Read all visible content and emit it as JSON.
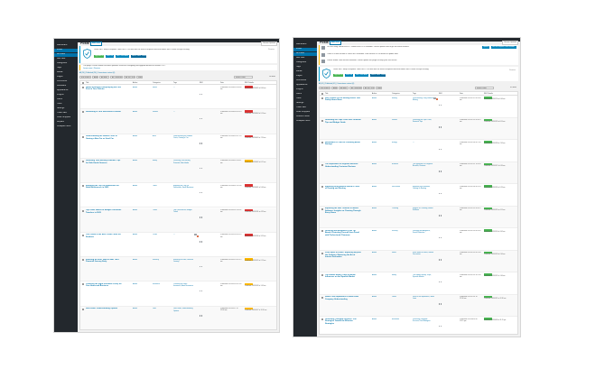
{
  "sidebar": {
    "items_left": [
      "Dashboard",
      "Posts",
      "All Posts",
      "Add New",
      "Categories",
      "Tags",
      "Media",
      "Pages",
      "Comments",
      "Feedback",
      "Appearance",
      "Plugins",
      "Users",
      "Tools",
      "Settings",
      "Yoast SEO",
      "Code Snippets",
      "Jetpack",
      "Collapse menu"
    ],
    "items_right": [
      "Dashboard",
      "Posts",
      "All Posts",
      "Add New",
      "Categories",
      "Tags",
      "Media",
      "Pages",
      "Comments",
      "Appearance",
      "Plugins",
      "Users",
      "Tools",
      "Settings",
      "Yoast SEO",
      "Code Snippets",
      "Custom Fields",
      "Collapse menu"
    ]
  },
  "left": {
    "title": "Posts",
    "add_new": "Add New",
    "screen_options": "Screen Options",
    "notice_text": "Yoast SEO: Help us improve Yoast SEO. Our data tells us what to improve and what works well. Please accept tracking.",
    "notice_buttons": [
      "Upgrade to Pro",
      "Rate 5★",
      "Get a Free Audit",
      "Watch Video Tutorial"
    ],
    "dismiss": "Dismiss",
    "info_line": "The plugin Classic Editor has been updated. Read the changelog and upgrade details for version 1.6.2.",
    "info_link": "Learn more | Dismiss",
    "subsubsub": "All (26) | Published (26) | Cornerstone content (0)",
    "bulk": "Bulk actions",
    "apply": "Apply",
    "dates": "All dates",
    "cats": "All Categories",
    "seo": "All SEO Scores",
    "readability": "All Readability",
    "filter": "Filter",
    "search": "Search Posts",
    "items": "26 items",
    "columns": [
      "Title",
      "Author",
      "Categories",
      "Tags",
      "SEO",
      "Date",
      "SEO Details"
    ],
    "rows": [
      {
        "title": "Health Insurance Demystifying the Fine Print in Your Policies",
        "author": "Admin",
        "category": "Health",
        "tags": "—",
        "comments": "",
        "badge": "No Focus",
        "badge_color": "#dc3232",
        "date": "Published 2023/06/05 at 8:00 am"
      },
      {
        "title": "Something in Your Retirement Portfolio",
        "author": "Admin",
        "category": "Finance",
        "tags": "—",
        "comments": "",
        "badge": "No Focus",
        "badge_color": "#dc3232",
        "date": "Published 2023/06/04 at 9:14 am"
      },
      {
        "title": "Understanding the Hidden Costs of Owning a New Car vs Used Car",
        "author": "Admin",
        "category": "Auto",
        "tags": "Understanding the Hidden Costs, Owning a Car",
        "comments": "",
        "badge": "No Focus",
        "badge_color": "#dc3232",
        "date": "Published 2023/06/03 at 7:20 am"
      },
      {
        "title": "Unlocking Your Earning Potential: Tips for Side Hustle Success",
        "author": "Admin",
        "category": "Money",
        "tags": "Unlocking Your Earning Potential, Side Hustle",
        "comments": "",
        "badge": "No Focus",
        "badge_color": "#ffb900",
        "date": "Published 2023/06/02 at 6:11 am"
      },
      {
        "title": "Exploring the Top Tax Deductions for Small Businesses in 2023",
        "author": "Admin",
        "category": "Taxes",
        "tags": "Exploring the Top Tax Deductions, Small Business",
        "comments": "",
        "badge": "No Focus",
        "badge_color": "#dc3232",
        "date": "Published 2023/06/01 at 5:40 am"
      },
      {
        "title": "Top Travel Hacks for Budget-Conscious Travelers in 2023",
        "author": "Admin",
        "category": "Travel",
        "tags": "Top Travel Hacks, Budget Travel",
        "comments": "",
        "badge": "No Focus",
        "badge_color": "#dc3232",
        "date": "Published 2023/05/31 at 4:32 am"
      },
      {
        "title": "Your Guide to the Best Credit Cards for Students",
        "author": "Admin",
        "category": "Cards",
        "tags": "—",
        "comments": "1",
        "badge": "No Focus",
        "badge_color": "#dc3232",
        "date": "Published 2023/05/30 at 3:25 am"
      },
      {
        "title": "Investing for Kids: How to Start Their Financial Journey Early",
        "author": "Admin",
        "category": "Investing",
        "tags": "Investing for Kids, Financial Journey",
        "comments": "",
        "badge": "No Focus",
        "badge_color": "#ffb900",
        "date": "Published 2023/05/29 at 2:15 am"
      },
      {
        "title": "Choosing the Right Insurance Policy for Your Home and Business",
        "author": "Admin",
        "category": "Insurance",
        "tags": "Choosing the Right Insurance, Home Insurance",
        "comments": "",
        "badge": "No Focus",
        "badge_color": "#ffb900",
        "date": "Published 2023/05/28 at 1:05 am"
      },
      {
        "title": "Debt Relief: Understanding Options",
        "author": "Admin",
        "category": "Debt",
        "tags": "Debt Relief, Understanding Options",
        "comments": "",
        "badge": "No Focus",
        "badge_color": "#ffb900",
        "date": "Published 2023/05/27 at 12:00 am"
      }
    ]
  },
  "right": {
    "title": "Posts",
    "add_new": "Add New",
    "screen_options": "Screen Options",
    "update_lines": [
      "You are using WordPress 6.2. WordPress 6.3 is available. Please update now to get the latest features.",
      "There is a new version of Yoast SEO available. View version 20.10 details or update now.",
      "Classic Editor: new version available. Please update the plugin to keep your site secure."
    ],
    "update_button": "Update Now",
    "update_button2": "Get the complete Yoast Bundle",
    "notice_text": "Yoast SEO: Help us improve Yoast SEO. Our data tells us what to improve and what works well. Please accept tracking.",
    "notice_buttons": [
      "Upgrade to Pro",
      "Rate 5★",
      "Get a Free Audit",
      "Watch Video Tutorial"
    ],
    "dismiss": "Dismiss",
    "subsubsub": "All (41) | Published (41) | Cornerstone content (0)",
    "bulk": "Bulk actions",
    "apply": "Apply",
    "dates": "All dates",
    "cats": "All Categories",
    "seo": "All SEO Scores",
    "readability": "All Readability",
    "filter": "Filter",
    "search": "Search Posts",
    "items": "41 items",
    "columns": [
      "Title",
      "Author",
      "Categories",
      "Tags",
      "SEO",
      "Date",
      "SEO Details"
    ],
    "rows": [
      {
        "title": "Why Choose Us for Moving House Your Family Home Move",
        "author": "Admin",
        "category": "Moving",
        "tags": "Local Moving, Long Distance Moving",
        "comments": "2",
        "badge": "Good",
        "badge_color": "#46b450",
        "date": "Published 2023/07/10 at 9:00 am"
      },
      {
        "title": "Unlocking the Cape Coral Fast Financial Tips and Budget Guide",
        "author": "Admin",
        "category": "Finance",
        "tags": "Unlocking the Cape Coral, Financial Tips",
        "comments": "",
        "badge": "Good",
        "badge_color": "#46b450",
        "date": "Published 2023/07/09 at 8:10 am"
      },
      {
        "title": "Renewable vs Coal for Providing Better Savings",
        "author": "Admin",
        "category": "Energy",
        "tags": "—",
        "comments": "",
        "badge": "Good",
        "badge_color": "#46b450",
        "date": "Published 2023/07/08 at 7:45 am"
      },
      {
        "title": "The Importance of Regional Benefits: Understanding Customer Reviews",
        "author": "Admin",
        "category": "Business",
        "tags": "The Importance of Regional Benefits, Reviews",
        "comments": "",
        "badge": "Good",
        "badge_color": "#46b450",
        "date": "Published 2023/07/07 at 6:30 am"
      },
      {
        "title": "Exploring Rent Benefits Worth It Costs of Owning and Renting",
        "author": "Admin",
        "category": "Real Estate",
        "tags": "Exploring Rent Benefits, Owning vs Renting",
        "comments": "",
        "badge": "Good",
        "badge_color": "#46b450",
        "date": "Published 2023/07/06 at 5:20 am"
      },
      {
        "title": "Exploring the Hills Timeline of Mobile Software: Insights on Cleaning Through Every Home",
        "author": "Admin",
        "category": "Cleaning",
        "tags": "Insights on Cleaning, Mobile Software",
        "comments": "",
        "badge": "Good",
        "badge_color": "#46b450",
        "date": "Published 2023/07/05 at 4:15 am"
      },
      {
        "title": "Unveiling the Allegiance of the Tip Board: Protecting Yourself from Fraud with Professional Clearance",
        "author": "Admin",
        "category": "Security",
        "tags": "Unveiling the Allegiance, Fraud Protection",
        "comments": "",
        "badge": "Good",
        "badge_color": "#46b450",
        "date": "Published 2023/07/04 at 3:05 am"
      },
      {
        "title": "From Walls to Floors: Exploring Beyond the Ordinary: Mastering the Art of Interior Decoration",
        "author": "Admin",
        "category": "Home",
        "tags": "From Walls to Floors, Interior Decoration",
        "comments": "",
        "badge": "Good",
        "badge_color": "#46b450",
        "date": "Published 2023/07/03 at 2:00 am"
      },
      {
        "title": "The Hidden Money Traps to Avoid: Influences on the Spanish Market",
        "author": "Admin",
        "category": "Money",
        "tags": "The Hidden Money Traps, Spanish Market",
        "comments": "",
        "badge": "Good",
        "badge_color": "#46b450",
        "date": "Published 2023/07/02 at 1:00 am"
      },
      {
        "title": "What is the Importance of Small Loan Company Understanding",
        "author": "Admin",
        "category": "Loans",
        "tags": "What is the Importance, Small Loan",
        "comments": "",
        "badge": "Good",
        "badge_color": "#46b450",
        "date": "Published 2023/07/01 at 12:30 am"
      },
      {
        "title": "Unlocking Collegiate Success: Fun Strategies Toward the Effective Strategies",
        "author": "Admin",
        "category": "Education",
        "tags": "Unlocking Collegiate Success, Fun Strategies",
        "comments": "",
        "badge": "Good",
        "badge_color": "#46b450",
        "date": "Published 2023/06/30 at 11:15 pm"
      }
    ]
  },
  "colors": {
    "sidebar": "#23282d",
    "accent": "#0073aa",
    "notice_blue": "#00a0d2",
    "btn_green": "#46b450",
    "btn_blue": "#0085ba",
    "btn_dark": "#006799",
    "badge_red": "#dc3232",
    "badge_yellow": "#ffb900",
    "badge_green": "#46b450"
  },
  "icons": [
    "shield-icon",
    "comment-bubble-icon",
    "traffic-light-dots-icon",
    "checkbox-icon"
  ]
}
